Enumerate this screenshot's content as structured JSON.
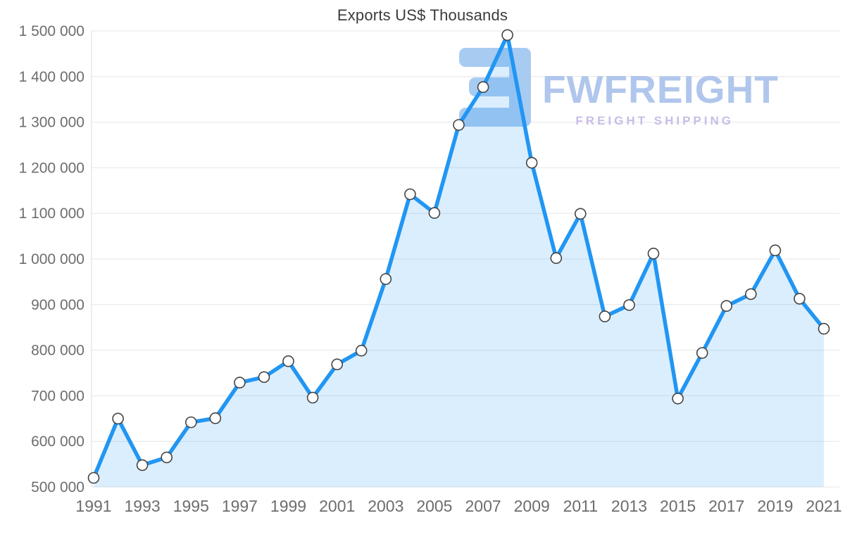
{
  "watermark": {
    "brand": "FWFREIGHT",
    "tagline": "FREIGHT SHIPPING"
  },
  "chart_data": {
    "type": "area",
    "title": "Exports US$ Thousands",
    "xlabel": "",
    "ylabel": "",
    "legend": "none",
    "grid": "horizontal",
    "x": [
      1991,
      1992,
      1993,
      1994,
      1995,
      1996,
      1997,
      1998,
      1999,
      2000,
      2001,
      2002,
      2003,
      2004,
      2005,
      2006,
      2007,
      2008,
      2009,
      2010,
      2011,
      2012,
      2013,
      2014,
      2015,
      2016,
      2017,
      2018,
      2019,
      2020,
      2021
    ],
    "values": [
      520000,
      650000,
      548000,
      565000,
      642000,
      651000,
      729000,
      741000,
      776000,
      696000,
      769000,
      799000,
      956000,
      1142000,
      1101000,
      1294000,
      1377000,
      1491000,
      1211000,
      1002000,
      1099000,
      874000,
      899000,
      1012000,
      694000,
      794000,
      897000,
      923000,
      1019000,
      913000,
      847000
    ],
    "ylim": [
      500000,
      1500000
    ],
    "ytick_step": 100000,
    "ytick_labels": [
      "500 000",
      "600 000",
      "700 000",
      "800 000",
      "900 000",
      "1 000 000",
      "1 100 000",
      "1 200 000",
      "1 300 000",
      "1 400 000",
      "1 500 000"
    ],
    "xtick_labels": [
      "1991",
      "1993",
      "1995",
      "1997",
      "1999",
      "2001",
      "2003",
      "2005",
      "2007",
      "2009",
      "2011",
      "2013",
      "2015",
      "2017",
      "2019",
      "2021"
    ],
    "fill_opacity": 0.16,
    "colors": {
      "line": "#2196f3",
      "marker_fill": "#ffffff",
      "marker_stroke": "#444444",
      "grid": "#e6e6e6",
      "axis_line": "#dedede",
      "tick_text": "#6d6d6d",
      "title_text": "#3b3b3b",
      "watermark_logo": "#a8cbf2",
      "watermark_brand": "#b0c6ec",
      "watermark_tagline": "#c9bde9"
    }
  }
}
